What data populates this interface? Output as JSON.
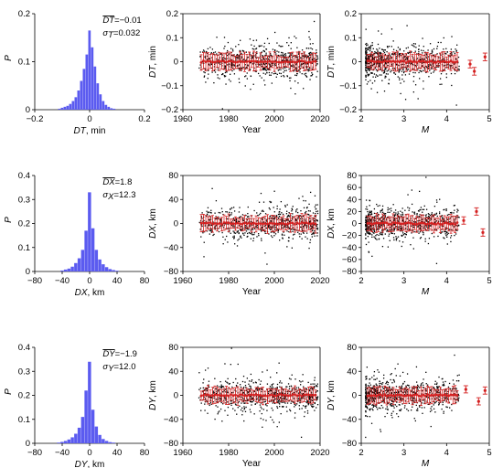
{
  "chart_data": [
    {
      "type": "histogram",
      "xlabel_var": "DT",
      "xlabel_unit": ", min",
      "ylabel": "P",
      "xlim": [
        -0.2,
        0.2
      ],
      "ylim": [
        0,
        0.2
      ],
      "xticks": [
        "−0.2",
        "0",
        "0.2"
      ],
      "yticks": [
        "0",
        "0.1",
        "0.2"
      ],
      "stat_mean_symbol": "DT",
      "stat_mean": "=−0.01",
      "stat_sigma_sub": "T",
      "stat_sigma": "=0.032",
      "bins": [
        [
          -0.11,
          0.002
        ],
        [
          -0.1,
          0.004
        ],
        [
          -0.09,
          0.006
        ],
        [
          -0.08,
          0.008
        ],
        [
          -0.07,
          0.012
        ],
        [
          -0.06,
          0.018
        ],
        [
          -0.05,
          0.026
        ],
        [
          -0.04,
          0.04
        ],
        [
          -0.03,
          0.06
        ],
        [
          -0.02,
          0.085
        ],
        [
          -0.01,
          0.115
        ],
        [
          0,
          0.165
        ],
        [
          0.01,
          0.13
        ],
        [
          0.02,
          0.09
        ],
        [
          0.03,
          0.055
        ],
        [
          0.04,
          0.032
        ],
        [
          0.05,
          0.018
        ],
        [
          0.06,
          0.01
        ],
        [
          0.07,
          0.006
        ],
        [
          0.08,
          0.003
        ],
        [
          0.09,
          0.002
        ]
      ],
      "bin_width": 0.01
    },
    {
      "type": "scatter",
      "xlabel": "Year",
      "ylabel_var": "DT",
      "ylabel_unit": ", min",
      "xlim": [
        1960,
        2020
      ],
      "ylim": [
        -0.2,
        0.2
      ],
      "xticks": [
        "1960",
        "1980",
        "2000",
        "2020"
      ],
      "yticks": [
        "−0.2",
        "−0.1",
        "0",
        "0.1",
        "0.2"
      ],
      "spread": 0.032
    },
    {
      "type": "scatter",
      "xlabel": "M",
      "ylabel_var": "DT",
      "ylabel_unit": ", min",
      "xlim": [
        2,
        5
      ],
      "ylim": [
        -0.2,
        0.2
      ],
      "xticks": [
        "2",
        "3",
        "4",
        "5"
      ],
      "yticks": [
        "−0.2",
        "−0.1",
        "0",
        "0.1",
        "0.2"
      ],
      "spread": 0.032,
      "tail_means": [
        [
          4.55,
          -0.01
        ],
        [
          4.65,
          -0.04
        ],
        [
          4.9,
          0.02
        ]
      ]
    },
    {
      "type": "histogram",
      "xlabel_var": "DX",
      "xlabel_unit": ", km",
      "ylabel": "P",
      "xlim": [
        -80,
        80
      ],
      "ylim": [
        0,
        0.4
      ],
      "xticks": [
        "−80",
        "−40",
        "0",
        "40",
        "80"
      ],
      "yticks": [
        "0",
        "0.1",
        "0.2",
        "0.3",
        "0.4"
      ],
      "stat_mean_symbol": "DX",
      "stat_mean": "=1.8",
      "stat_sigma_sub": "X",
      "stat_sigma": "=12.3",
      "bins": [
        [
          -40,
          0.004
        ],
        [
          -35,
          0.008
        ],
        [
          -30,
          0.012
        ],
        [
          -25,
          0.02
        ],
        [
          -20,
          0.035
        ],
        [
          -15,
          0.055
        ],
        [
          -10,
          0.09
        ],
        [
          -5,
          0.17
        ],
        [
          0,
          0.33
        ],
        [
          5,
          0.18
        ],
        [
          10,
          0.09
        ],
        [
          15,
          0.05
        ],
        [
          20,
          0.03
        ],
        [
          25,
          0.018
        ],
        [
          30,
          0.01
        ],
        [
          35,
          0.006
        ],
        [
          40,
          0.003
        ]
      ],
      "bin_width": 5
    },
    {
      "type": "scatter",
      "xlabel": "Year",
      "ylabel_var": "DX",
      "ylabel_unit": ", km",
      "xlim": [
        1960,
        2020
      ],
      "ylim": [
        -80,
        80
      ],
      "xticks": [
        "1960",
        "1980",
        "2000",
        "2020"
      ],
      "yticks": [
        "−80",
        "−40",
        "0",
        "40",
        "80"
      ],
      "spread": 12.3
    },
    {
      "type": "scatter",
      "xlabel": "M",
      "ylabel_var": "DX",
      "ylabel_unit": ", km",
      "xlim": [
        2,
        5
      ],
      "ylim": [
        -80,
        80
      ],
      "xticks": [
        "2",
        "3",
        "4",
        "5"
      ],
      "yticks": [
        "−80",
        "−60",
        "−40",
        "−20",
        "0",
        "20",
        "40",
        "60",
        "80"
      ],
      "spread": 12.3,
      "tail_means": [
        [
          4.4,
          5
        ],
        [
          4.7,
          20
        ],
        [
          4.85,
          -15
        ]
      ]
    },
    {
      "type": "histogram",
      "xlabel_var": "DY",
      "xlabel_unit": ", km",
      "ylabel": "P",
      "xlim": [
        -80,
        80
      ],
      "ylim": [
        0,
        0.4
      ],
      "xticks": [
        "−80",
        "−40",
        "0",
        "40",
        "80"
      ],
      "yticks": [
        "0",
        "0.1",
        "0.2",
        "0.3",
        "0.4"
      ],
      "stat_mean_symbol": "DY",
      "stat_mean": "=−1.9",
      "stat_sigma_sub": "Y",
      "stat_sigma": "=12.0",
      "bins": [
        [
          -45,
          0.003
        ],
        [
          -40,
          0.006
        ],
        [
          -35,
          0.01
        ],
        [
          -30,
          0.016
        ],
        [
          -25,
          0.025
        ],
        [
          -20,
          0.04
        ],
        [
          -15,
          0.065
        ],
        [
          -10,
          0.11
        ],
        [
          -5,
          0.22
        ],
        [
          0,
          0.34
        ],
        [
          5,
          0.14
        ],
        [
          10,
          0.07
        ],
        [
          15,
          0.035
        ],
        [
          20,
          0.018
        ],
        [
          25,
          0.01
        ],
        [
          30,
          0.005
        ],
        [
          35,
          0.003
        ]
      ],
      "bin_width": 5
    },
    {
      "type": "scatter",
      "xlabel": "Year",
      "ylabel_var": "DY",
      "ylabel_unit": ", km",
      "xlim": [
        1960,
        2020
      ],
      "ylim": [
        -80,
        80
      ],
      "xticks": [
        "1960",
        "1980",
        "2000",
        "2020"
      ],
      "yticks": [
        "−80",
        "−40",
        "0",
        "40",
        "80"
      ],
      "spread": 12.0
    },
    {
      "type": "scatter",
      "xlabel": "M",
      "ylabel_var": "DY",
      "ylabel_unit": ", km",
      "xlim": [
        2,
        5
      ],
      "ylim": [
        -80,
        80
      ],
      "xticks": [
        "2",
        "3",
        "4",
        "5"
      ],
      "yticks": [
        "−80",
        "−40",
        "0",
        "40",
        "80"
      ],
      "spread": 12.0,
      "tail_means": [
        [
          4.45,
          10
        ],
        [
          4.75,
          -10
        ],
        [
          4.9,
          8
        ]
      ]
    }
  ],
  "colors": {
    "histogram": "#5b5bf0",
    "means": "#d42020",
    "points": "#000000",
    "axis": "#000000"
  }
}
